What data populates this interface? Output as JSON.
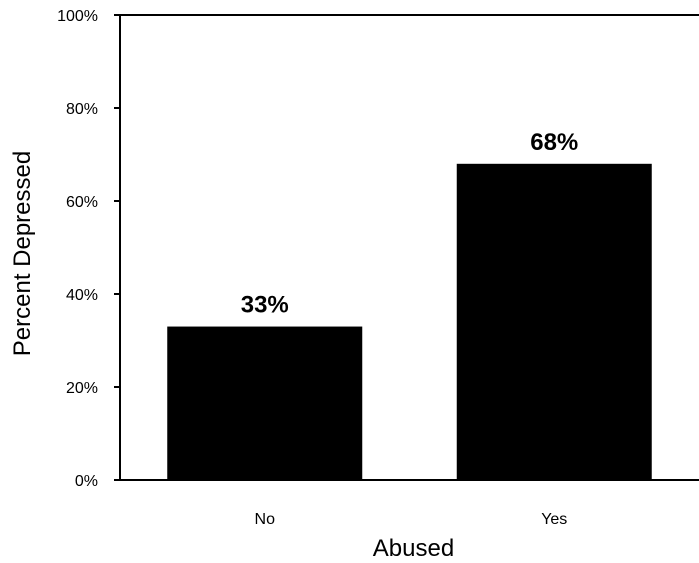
{
  "chart_data": {
    "type": "bar",
    "title": "",
    "xlabel": "Abused",
    "ylabel": "Percent Depressed",
    "categories": [
      "No",
      "Yes"
    ],
    "values": [
      33,
      68
    ],
    "data_labels": [
      "33%",
      "68%"
    ],
    "ylim": [
      0,
      100
    ],
    "yticks": [
      {
        "value": 0,
        "label": "0%"
      },
      {
        "value": 20,
        "label": "20%"
      },
      {
        "value": 40,
        "label": "40%"
      },
      {
        "value": 60,
        "label": "60%"
      },
      {
        "value": 80,
        "label": "80%"
      },
      {
        "value": 100,
        "label": "100%"
      }
    ],
    "grid": false,
    "legend": "none",
    "bar_color": "#000000"
  }
}
